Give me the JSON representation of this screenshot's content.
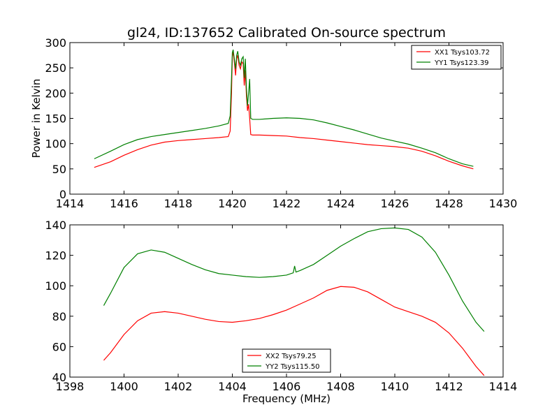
{
  "figure": {
    "title": "gl24, ID:137652 Calibrated On-source spectrum"
  },
  "chart_data": [
    {
      "type": "line",
      "ylabel": "Power in Kelvin",
      "xlabel": "",
      "xlim": [
        1414,
        1430
      ],
      "ylim": [
        0,
        300
      ],
      "x_ticks": [
        1414,
        1416,
        1418,
        1420,
        1422,
        1424,
        1426,
        1428,
        1430
      ],
      "y_ticks": [
        0,
        50,
        100,
        150,
        200,
        250,
        300
      ],
      "legend": "top-right",
      "grid": false,
      "series": [
        {
          "name": "XX1 Tsys103.72",
          "color": "#ff0000",
          "points": [
            [
              1414.9,
              53
            ],
            [
              1415.5,
              64
            ],
            [
              1416.0,
              77
            ],
            [
              1416.5,
              88
            ],
            [
              1417.0,
              97
            ],
            [
              1417.5,
              103
            ],
            [
              1418.0,
              106
            ],
            [
              1418.5,
              108
            ],
            [
              1419.0,
              110
            ],
            [
              1419.5,
              112
            ],
            [
              1419.85,
              114
            ],
            [
              1419.92,
              125
            ],
            [
              1419.97,
              200
            ],
            [
              1420.0,
              272
            ],
            [
              1420.03,
              282
            ],
            [
              1420.08,
              258
            ],
            [
              1420.12,
              235
            ],
            [
              1420.16,
              268
            ],
            [
              1420.2,
              275
            ],
            [
              1420.25,
              255
            ],
            [
              1420.3,
              248
            ],
            [
              1420.35,
              262
            ],
            [
              1420.4,
              258
            ],
            [
              1420.44,
              215
            ],
            [
              1420.48,
              245
            ],
            [
              1420.52,
              195
            ],
            [
              1420.56,
              165
            ],
            [
              1420.6,
              178
            ],
            [
              1420.64,
              150
            ],
            [
              1420.68,
              118
            ],
            [
              1420.75,
              117
            ],
            [
              1421.0,
              117
            ],
            [
              1421.5,
              116
            ],
            [
              1422.0,
              115
            ],
            [
              1422.5,
              112
            ],
            [
              1423.0,
              110
            ],
            [
              1423.5,
              107
            ],
            [
              1424.0,
              104
            ],
            [
              1424.5,
              101
            ],
            [
              1425.0,
              98
            ],
            [
              1425.5,
              96
            ],
            [
              1426.0,
              94
            ],
            [
              1426.5,
              91
            ],
            [
              1427.0,
              85
            ],
            [
              1427.5,
              76
            ],
            [
              1428.0,
              65
            ],
            [
              1428.5,
              56
            ],
            [
              1428.9,
              50
            ]
          ]
        },
        {
          "name": "YY1 Tsys123.39",
          "color": "#008000",
          "points": [
            [
              1414.9,
              70
            ],
            [
              1415.5,
              85
            ],
            [
              1416.0,
              98
            ],
            [
              1416.5,
              108
            ],
            [
              1417.0,
              114
            ],
            [
              1417.5,
              118
            ],
            [
              1418.0,
              122
            ],
            [
              1418.5,
              126
            ],
            [
              1419.0,
              130
            ],
            [
              1419.5,
              135
            ],
            [
              1419.85,
              140
            ],
            [
              1419.92,
              155
            ],
            [
              1419.97,
              230
            ],
            [
              1420.0,
              280
            ],
            [
              1420.03,
              286
            ],
            [
              1420.08,
              265
            ],
            [
              1420.12,
              248
            ],
            [
              1420.16,
              275
            ],
            [
              1420.2,
              283
            ],
            [
              1420.25,
              262
            ],
            [
              1420.3,
              255
            ],
            [
              1420.35,
              268
            ],
            [
              1420.4,
              272
            ],
            [
              1420.44,
              230
            ],
            [
              1420.48,
              268
            ],
            [
              1420.52,
              210
            ],
            [
              1420.56,
              175
            ],
            [
              1420.6,
              200
            ],
            [
              1420.64,
              228
            ],
            [
              1420.68,
              150
            ],
            [
              1420.75,
              148
            ],
            [
              1421.0,
              148
            ],
            [
              1421.5,
              150
            ],
            [
              1422.0,
              151
            ],
            [
              1422.5,
              150
            ],
            [
              1423.0,
              147
            ],
            [
              1423.5,
              141
            ],
            [
              1424.0,
              134
            ],
            [
              1424.5,
              127
            ],
            [
              1425.0,
              119
            ],
            [
              1425.5,
              111
            ],
            [
              1426.0,
              105
            ],
            [
              1426.5,
              99
            ],
            [
              1427.0,
              91
            ],
            [
              1427.5,
              82
            ],
            [
              1428.0,
              70
            ],
            [
              1428.5,
              60
            ],
            [
              1428.9,
              55
            ]
          ]
        }
      ]
    },
    {
      "type": "line",
      "xlabel": "Frequency (MHz)",
      "ylabel": "",
      "xlim": [
        1398,
        1414
      ],
      "ylim": [
        40,
        140
      ],
      "x_ticks": [
        1398,
        1400,
        1402,
        1404,
        1406,
        1408,
        1410,
        1412,
        1414
      ],
      "y_ticks": [
        40,
        60,
        80,
        100,
        120,
        140
      ],
      "legend": "bottom-center",
      "grid": false,
      "series": [
        {
          "name": "XX2 Tsys79.25",
          "color": "#ff0000",
          "points": [
            [
              1399.25,
              51
            ],
            [
              1399.5,
              56
            ],
            [
              1400.0,
              68
            ],
            [
              1400.5,
              77
            ],
            [
              1401.0,
              82
            ],
            [
              1401.5,
              83
            ],
            [
              1402.0,
              82
            ],
            [
              1402.5,
              80
            ],
            [
              1403.0,
              78
            ],
            [
              1403.5,
              76.5
            ],
            [
              1404.0,
              76
            ],
            [
              1404.5,
              77
            ],
            [
              1405.0,
              78.5
            ],
            [
              1405.5,
              81
            ],
            [
              1406.0,
              84
            ],
            [
              1406.5,
              88
            ],
            [
              1407.0,
              92
            ],
            [
              1407.5,
              97
            ],
            [
              1408.0,
              99.5
            ],
            [
              1408.5,
              99
            ],
            [
              1409.0,
              96
            ],
            [
              1409.5,
              91
            ],
            [
              1410.0,
              86
            ],
            [
              1410.5,
              83
            ],
            [
              1411.0,
              80
            ],
            [
              1411.5,
              76
            ],
            [
              1412.0,
              69
            ],
            [
              1412.5,
              59
            ],
            [
              1413.0,
              47
            ],
            [
              1413.3,
              41
            ]
          ]
        },
        {
          "name": "YY2 Tsys115.50",
          "color": "#008000",
          "points": [
            [
              1399.25,
              87
            ],
            [
              1399.5,
              95
            ],
            [
              1400.0,
              112
            ],
            [
              1400.5,
              121
            ],
            [
              1401.0,
              123.5
            ],
            [
              1401.5,
              122
            ],
            [
              1402.0,
              118
            ],
            [
              1402.5,
              114
            ],
            [
              1403.0,
              110.5
            ],
            [
              1403.5,
              108
            ],
            [
              1404.0,
              107
            ],
            [
              1404.5,
              106
            ],
            [
              1405.0,
              105.5
            ],
            [
              1405.5,
              106
            ],
            [
              1406.0,
              107
            ],
            [
              1406.25,
              108.5
            ],
            [
              1406.3,
              113
            ],
            [
              1406.35,
              109
            ],
            [
              1406.5,
              110
            ],
            [
              1407.0,
              114
            ],
            [
              1407.5,
              120
            ],
            [
              1408.0,
              126
            ],
            [
              1408.5,
              131
            ],
            [
              1409.0,
              135.5
            ],
            [
              1409.5,
              137.5
            ],
            [
              1410.0,
              138
            ],
            [
              1410.5,
              137
            ],
            [
              1411.0,
              132
            ],
            [
              1411.5,
              122
            ],
            [
              1412.0,
              107
            ],
            [
              1412.5,
              90
            ],
            [
              1413.0,
              76
            ],
            [
              1413.3,
              70
            ]
          ]
        }
      ]
    }
  ]
}
